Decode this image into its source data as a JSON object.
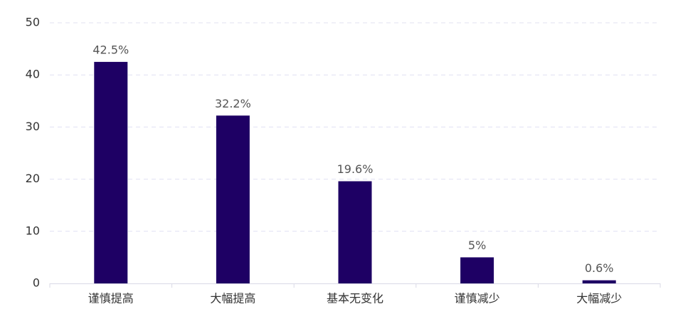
{
  "chart_data": {
    "type": "bar",
    "categories": [
      "谨慎提高",
      "大幅提高",
      "基本无变化",
      "谨慎减少",
      "大幅减少"
    ],
    "values": [
      42.5,
      32.2,
      19.6,
      5,
      0.6
    ],
    "value_labels": [
      "42.5%",
      "32.2%",
      "19.6%",
      "5%",
      "0.6%"
    ],
    "color": "#1e0064",
    "ylim": [
      0,
      50
    ],
    "yticks": [
      0,
      10,
      20,
      30,
      40,
      50
    ],
    "grid": true
  }
}
